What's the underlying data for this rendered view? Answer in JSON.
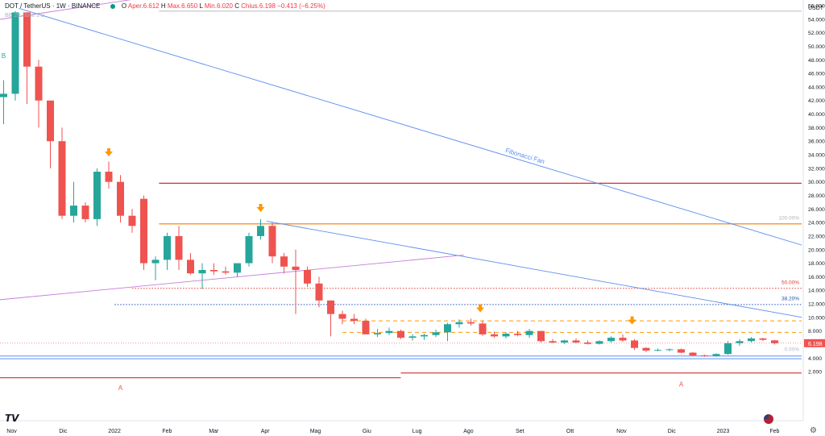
{
  "header": {
    "symbol": "DOT / TetherUS · 1W · BINANCE",
    "o_label": "O",
    "open": "Aper.6.612",
    "h_label": "H",
    "high": "Max.6.650",
    "l_label": "L",
    "low": "Min.6.020",
    "c_label": "C",
    "close": "Chius.6.198",
    "change": "−0.413 (−6.25%)",
    "indicator": "BB 20 close 2 0"
  },
  "colors": {
    "up": "#26a69a",
    "down": "#ef5350",
    "trend_blue": "#5b8def",
    "trend_purple": "#c77dd8",
    "red_line": "#d32f2f",
    "orange_line": "#f57c00",
    "orange_dash": "#ff9800",
    "fib_red_dot": "#e53935",
    "fib_blue_dot": "#1e4fb5",
    "price_tag": "#ef5350"
  },
  "chart_data": {
    "type": "candlestick",
    "currency_label": "USDT",
    "y_ticks": [
      "56.000",
      "54.000",
      "52.000",
      "50.000",
      "48.000",
      "46.000",
      "44.000",
      "42.000",
      "40.000",
      "38.000",
      "36.000",
      "34.000",
      "32.000",
      "30.000",
      "28.000",
      "26.000",
      "24.000",
      "22.000",
      "20.000",
      "18.000",
      "16.000",
      "14.000",
      "12.000",
      "10.000",
      "8.000",
      "6.000",
      "4.000",
      "2.000"
    ],
    "y_tick_values": [
      56,
      54,
      52,
      50,
      48,
      46,
      44,
      42,
      40,
      38,
      36,
      34,
      32,
      30,
      28,
      26,
      24,
      22,
      20,
      18,
      16,
      14,
      12,
      10,
      8,
      6,
      4,
      2
    ],
    "ylim": [
      -5,
      58
    ],
    "x_ticks": [
      {
        "label": "Nov",
        "week": 0
      },
      {
        "label": "Dic",
        "week": 4.4
      },
      {
        "label": "2022",
        "week": 8.8
      },
      {
        "label": "Feb",
        "week": 13.3
      },
      {
        "label": "Mar",
        "week": 17.3
      },
      {
        "label": "Apr",
        "week": 21.7
      },
      {
        "label": "Mag",
        "week": 26
      },
      {
        "label": "Giu",
        "week": 30.4
      },
      {
        "label": "Lug",
        "week": 34.7
      },
      {
        "label": "Ago",
        "week": 39.1
      },
      {
        "label": "Set",
        "week": 43.5
      },
      {
        "label": "Ott",
        "week": 47.8
      },
      {
        "label": "Nov",
        "week": 52.2
      },
      {
        "label": "Dic",
        "week": 56.5
      },
      {
        "label": "2023",
        "week": 60.9
      },
      {
        "label": "Feb",
        "week": 65.3
      }
    ],
    "candles": [
      {
        "o": 42.5,
        "h": 45,
        "l": 38.5,
        "c": 43
      },
      {
        "o": 43,
        "h": 55.2,
        "l": 42,
        "c": 55
      },
      {
        "o": 55,
        "h": 55,
        "l": 41.5,
        "c": 47
      },
      {
        "o": 47,
        "h": 48,
        "l": 38,
        "c": 42
      },
      {
        "o": 42,
        "h": 42,
        "l": 32,
        "c": 36
      },
      {
        "o": 36,
        "h": 38,
        "l": 24.5,
        "c": 25
      },
      {
        "o": 25,
        "h": 30,
        "l": 24,
        "c": 26.5
      },
      {
        "o": 26.5,
        "h": 27,
        "l": 24,
        "c": 24.5
      },
      {
        "o": 24.5,
        "h": 32,
        "l": 23.5,
        "c": 31.5
      },
      {
        "o": 31.5,
        "h": 33,
        "l": 29,
        "c": 30
      },
      {
        "o": 30,
        "h": 31,
        "l": 24,
        "c": 25
      },
      {
        "o": 25,
        "h": 26,
        "l": 22.5,
        "c": 23.5
      },
      {
        "o": 27.5,
        "h": 28,
        "l": 17,
        "c": 18
      },
      {
        "o": 18,
        "h": 19,
        "l": 15.5,
        "c": 18.5
      },
      {
        "o": 18.5,
        "h": 22.5,
        "l": 17,
        "c": 22
      },
      {
        "o": 22,
        "h": 23.5,
        "l": 17,
        "c": 18.5
      },
      {
        "o": 18.5,
        "h": 19.5,
        "l": 16.3,
        "c": 16.5
      },
      {
        "o": 16.5,
        "h": 18,
        "l": 14.2,
        "c": 17
      },
      {
        "o": 17,
        "h": 18,
        "l": 16.3,
        "c": 16.8
      },
      {
        "o": 16.8,
        "h": 17.5,
        "l": 16.3,
        "c": 16.6
      },
      {
        "o": 16.6,
        "h": 18,
        "l": 16,
        "c": 18
      },
      {
        "o": 18,
        "h": 22.5,
        "l": 17.5,
        "c": 22
      },
      {
        "o": 22,
        "h": 24.5,
        "l": 21.5,
        "c": 23.5
      },
      {
        "o": 23.5,
        "h": 24,
        "l": 18,
        "c": 19
      },
      {
        "o": 19,
        "h": 19.5,
        "l": 16.5,
        "c": 17.5
      },
      {
        "o": 17.5,
        "h": 20,
        "l": 10.5,
        "c": 17
      },
      {
        "o": 17,
        "h": 17.5,
        "l": 14.5,
        "c": 15
      },
      {
        "o": 15,
        "h": 16,
        "l": 11.5,
        "c": 12.5
      },
      {
        "o": 12.5,
        "h": 12.5,
        "l": 7.2,
        "c": 10.5
      },
      {
        "o": 10.5,
        "h": 11,
        "l": 9,
        "c": 9.8
      },
      {
        "o": 9.8,
        "h": 10.5,
        "l": 9,
        "c": 9.5
      },
      {
        "o": 9.5,
        "h": 9.8,
        "l": 7.5,
        "c": 7.5
      },
      {
        "o": 7.5,
        "h": 8.3,
        "l": 7.1,
        "c": 7.7
      },
      {
        "o": 7.7,
        "h": 8.5,
        "l": 7.4,
        "c": 8
      },
      {
        "o": 8,
        "h": 8.2,
        "l": 6.8,
        "c": 7
      },
      {
        "o": 7,
        "h": 7.5,
        "l": 6.6,
        "c": 7.2
      },
      {
        "o": 7.2,
        "h": 7.6,
        "l": 6.7,
        "c": 7.4
      },
      {
        "o": 7.4,
        "h": 8.2,
        "l": 7.1,
        "c": 7.8
      },
      {
        "o": 7.8,
        "h": 9.2,
        "l": 6.5,
        "c": 9
      },
      {
        "o": 9,
        "h": 9.7,
        "l": 8.5,
        "c": 9.3
      },
      {
        "o": 9.3,
        "h": 9.8,
        "l": 8.8,
        "c": 9.1
      },
      {
        "o": 9.1,
        "h": 9.5,
        "l": 7.3,
        "c": 7.5
      },
      {
        "o": 7.5,
        "h": 7.9,
        "l": 7,
        "c": 7.2
      },
      {
        "o": 7.2,
        "h": 7.8,
        "l": 6.9,
        "c": 7.6
      },
      {
        "o": 7.6,
        "h": 8,
        "l": 7.2,
        "c": 7.4
      },
      {
        "o": 7.4,
        "h": 8.3,
        "l": 7,
        "c": 8
      },
      {
        "o": 8,
        "h": 8,
        "l": 6.3,
        "c": 6.5
      },
      {
        "o": 6.5,
        "h": 6.8,
        "l": 6.2,
        "c": 6.3
      },
      {
        "o": 6.3,
        "h": 6.7,
        "l": 6.1,
        "c": 6.6
      },
      {
        "o": 6.6,
        "h": 6.9,
        "l": 6.2,
        "c": 6.3
      },
      {
        "o": 6.3,
        "h": 6.6,
        "l": 6,
        "c": 6.1
      },
      {
        "o": 6.1,
        "h": 6.6,
        "l": 6,
        "c": 6.5
      },
      {
        "o": 6.5,
        "h": 7.2,
        "l": 6.3,
        "c": 7
      },
      {
        "o": 7,
        "h": 7.5,
        "l": 6.4,
        "c": 6.6
      },
      {
        "o": 6.6,
        "h": 6.8,
        "l": 5.2,
        "c": 5.5
      },
      {
        "o": 5.5,
        "h": 5.6,
        "l": 4.9,
        "c": 5.1
      },
      {
        "o": 5.1,
        "h": 5.4,
        "l": 5,
        "c": 5.2
      },
      {
        "o": 5.2,
        "h": 5.4,
        "l": 5,
        "c": 5.3
      },
      {
        "o": 5.3,
        "h": 5.4,
        "l": 4.7,
        "c": 4.8
      },
      {
        "o": 4.8,
        "h": 4.9,
        "l": 4.3,
        "c": 4.4
      },
      {
        "o": 4.4,
        "h": 4.5,
        "l": 4.2,
        "c": 4.3
      },
      {
        "o": 4.3,
        "h": 4.7,
        "l": 4.2,
        "c": 4.6
      },
      {
        "o": 4.6,
        "h": 6.5,
        "l": 4.5,
        "c": 6.2
      },
      {
        "o": 6.2,
        "h": 6.8,
        "l": 5.8,
        "c": 6.5
      },
      {
        "o": 6.5,
        "h": 7.1,
        "l": 6.3,
        "c": 6.9
      },
      {
        "o": 6.9,
        "h": 7,
        "l": 6.5,
        "c": 6.7
      },
      {
        "o": 6.612,
        "h": 6.65,
        "l": 6.02,
        "c": 6.198
      }
    ],
    "levels": [
      {
        "type": "solid",
        "color": "#d32f2f",
        "y": 29.8,
        "w0": 13.3,
        "w1": 70
      },
      {
        "type": "solid",
        "color": "#f57c00",
        "y": 23.8,
        "w0": 13.3,
        "w1": 70
      },
      {
        "type": "dotted",
        "color": "#e53935",
        "y": 14.3,
        "w0": 11,
        "w1": 70
      },
      {
        "type": "dotted",
        "color": "#1e4fb5",
        "y": 11.9,
        "w0": 9.5,
        "w1": 70
      },
      {
        "type": "dashed",
        "color": "#ff9800",
        "y": 9.5,
        "w0": 29,
        "w1": 70
      },
      {
        "type": "dashed",
        "color": "#ff9800",
        "y": 7.8,
        "w0": 29,
        "w1": 70
      },
      {
        "type": "solid",
        "color": "#c8c8c8",
        "y": 55.2,
        "w0": 13.3,
        "w1": 70
      }
    ],
    "fib_labels": [
      {
        "text": "100.00%",
        "y": 24.8,
        "color": "#b2b5be"
      },
      {
        "text": "50.00%",
        "y": 15.3,
        "color": "#e53935"
      },
      {
        "text": "38.20%",
        "y": 12.9,
        "color": "#1e4fb5"
      },
      {
        "text": "0.00%",
        "y": 5.4,
        "color": "#b2b5be"
      }
    ],
    "trendlines": [
      {
        "color": "#5b8def",
        "w0": 1.3,
        "y0": 55.6,
        "w1": 70,
        "y1": 19.8,
        "label": "Fibonacci Fan",
        "lw": 0.9
      },
      {
        "color": "#5b8def",
        "w0": 22.5,
        "y0": 24.2,
        "w1": 70,
        "y1": 9.5,
        "lw": 0.9
      },
      {
        "color": "#c77dd8",
        "w0": -1,
        "y0": 12.5,
        "w1": 39.4,
        "y1": 19.2,
        "lw": 0.9
      },
      {
        "color": "#c77dd8",
        "w0": -1,
        "y0": 53.8,
        "w1": 13.3,
        "y1": 57.5,
        "lw": 0.9
      }
    ],
    "hlines": [
      {
        "color": "#5b8def",
        "y": 4.3,
        "w0": -2,
        "w1": 70,
        "lw": 1
      },
      {
        "color": "#5b8def",
        "y": 3.9,
        "w0": -2,
        "w1": 70,
        "lw": 1
      },
      {
        "color": "#d32f2f",
        "y": 1.1,
        "w0": -2,
        "w1": 34,
        "lw": 1.2
      },
      {
        "color": "#d32f2f",
        "y": 1.8,
        "w0": 34,
        "w1": 70,
        "lw": 1.2
      }
    ],
    "arrows": [
      {
        "w": 9,
        "y": 34
      },
      {
        "w": 22,
        "y": 25.8
      },
      {
        "w": 40.8,
        "y": 11
      },
      {
        "w": 53.8,
        "y": 9.2
      }
    ],
    "markers": [
      {
        "text": "B",
        "w": 0,
        "y": 48.3,
        "color": "#26a69a"
      },
      {
        "text": "A",
        "w": 10,
        "y": -0.7,
        "color": "#ef5350"
      },
      {
        "text": "A",
        "w": 58,
        "y": -0.2,
        "color": "#ef5350"
      }
    ],
    "last_price": "6.198"
  }
}
